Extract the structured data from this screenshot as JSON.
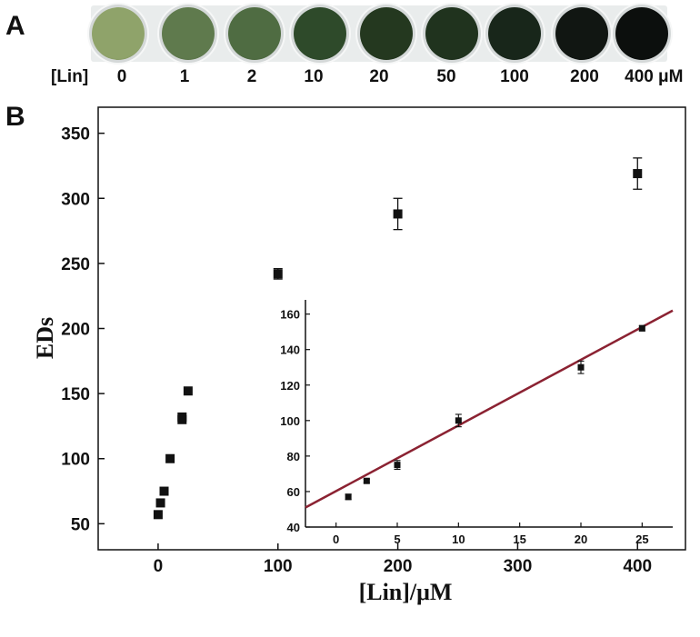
{
  "panel_a": {
    "letter": "A",
    "row_label": "[Lin]",
    "unit_label": "μM",
    "wells": [
      {
        "label": "0",
        "color": "#8fa36a"
      },
      {
        "label": "1",
        "color": "#5f7a4d"
      },
      {
        "label": "2",
        "color": "#4f6c42"
      },
      {
        "label": "10",
        "color": "#2e4a2a"
      },
      {
        "label": "20",
        "color": "#24381f"
      },
      {
        "label": "50",
        "color": "#20331e"
      },
      {
        "label": "100",
        "color": "#18261a"
      },
      {
        "label": "200",
        "color": "#111612"
      },
      {
        "label": "400",
        "color": "#0c0f0d"
      }
    ]
  },
  "chart_data": [
    {
      "type": "scatter",
      "panel": "B",
      "xlabel": "[Lin]/μM",
      "ylabel": "EDs",
      "xlim": [
        -50,
        440
      ],
      "ylim": [
        30,
        370
      ],
      "x_ticks": [
        "0",
        "100",
        "200",
        "300",
        "400"
      ],
      "y_ticks": [
        "50",
        "100",
        "150",
        "200",
        "250",
        "300",
        "350"
      ],
      "points": [
        {
          "x": 0,
          "y": 57
        },
        {
          "x": 2,
          "y": 66
        },
        {
          "x": 5,
          "y": 75
        },
        {
          "x": 10,
          "y": 100
        },
        {
          "x": 20,
          "y": 130
        },
        {
          "x": 20,
          "y": 132
        },
        {
          "x": 25,
          "y": 152
        },
        {
          "x": 100,
          "y": 242,
          "err": 4
        },
        {
          "x": 200,
          "y": 288,
          "err": 12
        },
        {
          "x": 400,
          "y": 319,
          "err": 12
        }
      ],
      "grid": false
    },
    {
      "type": "scatter",
      "panel": "B-inset",
      "xlim": [
        -2.5,
        27.5
      ],
      "ylim": [
        40,
        168
      ],
      "x_ticks": [
        "0",
        "5",
        "10",
        "15",
        "20",
        "25"
      ],
      "y_ticks": [
        "40",
        "60",
        "80",
        "100",
        "120",
        "140",
        "160"
      ],
      "points": [
        {
          "x": 1,
          "y": 57,
          "err": 1.5
        },
        {
          "x": 2.5,
          "y": 66,
          "err": 1
        },
        {
          "x": 5,
          "y": 75,
          "err": 2.5
        },
        {
          "x": 10,
          "y": 100,
          "err": 3.5
        },
        {
          "x": 20,
          "y": 130,
          "err": 3.5
        },
        {
          "x": 25,
          "y": 152,
          "err": 1.5
        }
      ],
      "fit_line": {
        "x": [
          -2.5,
          27.5
        ],
        "y": [
          51,
          162
        ],
        "color": "#8b2232"
      },
      "grid": false
    }
  ]
}
